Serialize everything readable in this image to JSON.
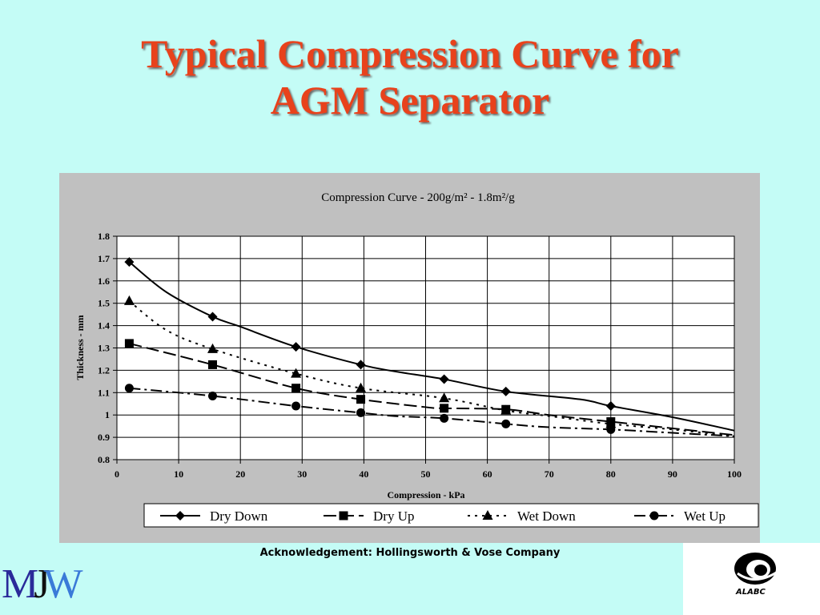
{
  "slide": {
    "title_line1": "Typical Compression Curve for",
    "title_line2": "AGM Separator",
    "acknowledgement": "Acknowledgement: Hollingsworth & Vose Company",
    "logo_left": {
      "m": "M",
      "j": "J",
      "w": "W"
    },
    "logo_right_text": "ALABC",
    "logo_right_icon": "alabc-swirl-icon"
  },
  "colors": {
    "background": "#c4fcf6",
    "title": "#e8421c",
    "plot_panel": "#c0c0c0",
    "plot_area": "#ffffff",
    "series": "#000000"
  },
  "chart_data": {
    "type": "line",
    "title": "Compression Curve - 200g/m² - 1.8m²/g",
    "xlabel": "Compression - kPa",
    "ylabel": "Thickness - mm",
    "xlim": [
      0,
      100
    ],
    "ylim": [
      0.8,
      1.8
    ],
    "x_ticks": [
      "0",
      "10",
      "20",
      "30",
      "40",
      "50",
      "60",
      "70",
      "80",
      "90",
      "100"
    ],
    "y_ticks": [
      "0.8",
      "0.9",
      "1",
      "1.1",
      "1.2",
      "1.3",
      "1.4",
      "1.5",
      "1.6",
      "1.7",
      "1.8"
    ],
    "grid": {
      "vertical": true,
      "horizontal": true
    },
    "legend_position": "bottom",
    "series": [
      {
        "name": "Dry Down",
        "marker": "diamond",
        "line": "solid",
        "x": [
          2,
          15.5,
          29,
          39.5,
          53,
          63,
          80
        ],
        "y": [
          1.685,
          1.44,
          1.305,
          1.225,
          1.16,
          1.105,
          1.04
        ],
        "line_x": [
          2,
          8,
          15.5,
          20,
          29,
          39.5,
          45,
          53,
          63,
          75,
          80,
          90,
          100
        ],
        "line_y": [
          1.685,
          1.55,
          1.44,
          1.395,
          1.305,
          1.225,
          1.195,
          1.16,
          1.105,
          1.07,
          1.04,
          0.99,
          0.93
        ]
      },
      {
        "name": "Dry Up",
        "marker": "square",
        "line": "dash",
        "x": [
          2,
          15.5,
          29,
          39.5,
          53,
          63,
          80
        ],
        "y": [
          1.32,
          1.225,
          1.12,
          1.07,
          1.03,
          1.025,
          0.97
        ],
        "line_x": [
          2,
          15.5,
          29,
          39.5,
          50,
          53,
          63,
          70,
          80,
          90,
          100
        ],
        "line_y": [
          1.32,
          1.225,
          1.12,
          1.07,
          1.035,
          1.03,
          1.025,
          1.0,
          0.97,
          0.94,
          0.91
        ]
      },
      {
        "name": "Wet Down",
        "marker": "triangle",
        "line": "dot",
        "x": [
          2,
          15.5,
          29,
          39.5,
          53,
          63,
          80
        ],
        "y": [
          1.51,
          1.295,
          1.185,
          1.12,
          1.075,
          1.02,
          0.96
        ],
        "line_x": [
          2,
          8,
          15.5,
          29,
          39.5,
          53,
          63,
          70,
          80,
          90,
          100
        ],
        "line_y": [
          1.51,
          1.38,
          1.295,
          1.185,
          1.12,
          1.075,
          1.02,
          0.995,
          0.96,
          0.935,
          0.905
        ]
      },
      {
        "name": "Wet Up",
        "marker": "circle",
        "line": "dashdot",
        "x": [
          2,
          15.5,
          29,
          39.5,
          53,
          63,
          80
        ],
        "y": [
          1.12,
          1.085,
          1.04,
          1.01,
          0.985,
          0.96,
          0.935
        ],
        "line_x": [
          2,
          15.5,
          29,
          39.5,
          45,
          53,
          63,
          70,
          80,
          90,
          100
        ],
        "line_y": [
          1.12,
          1.085,
          1.04,
          1.01,
          0.995,
          0.985,
          0.96,
          0.945,
          0.935,
          0.92,
          0.905
        ]
      }
    ]
  }
}
